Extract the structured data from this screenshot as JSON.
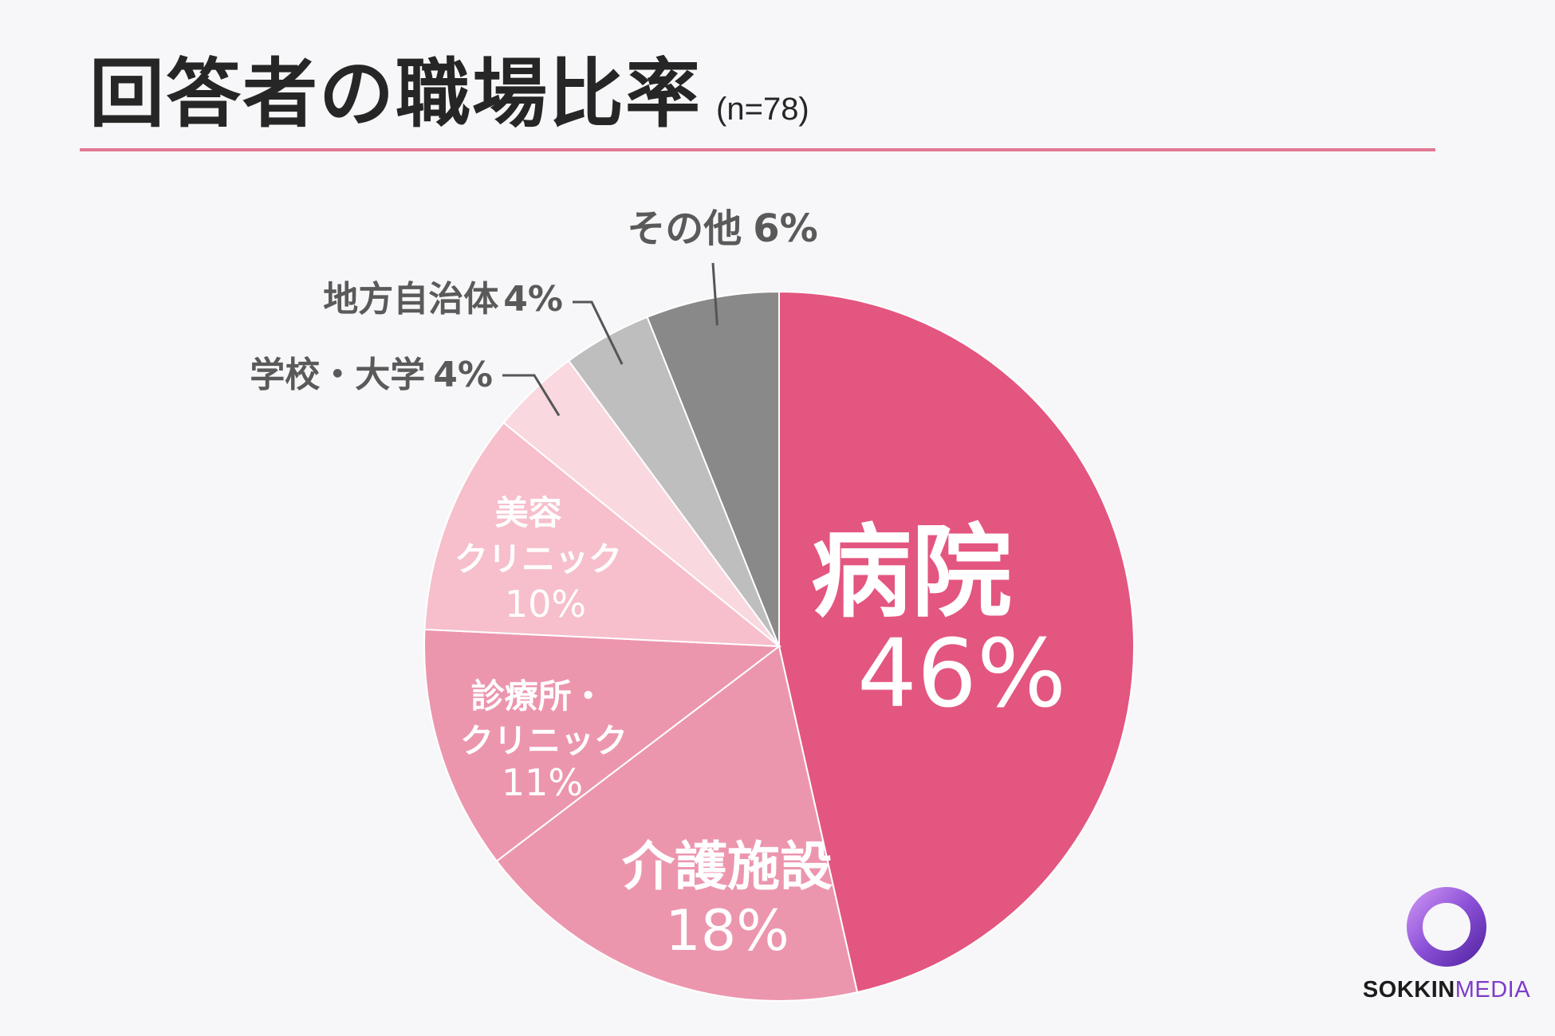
{
  "header": {
    "title": "回答者の職場比率",
    "sample": "(n=78)"
  },
  "brand": {
    "name_strong": "SOKKIN",
    "name_light": "MEDIA"
  },
  "chart_data": {
    "type": "pie",
    "title": "回答者の職場比率",
    "start_angle": "12 o'clock",
    "direction": "clockwise",
    "slices": [
      {
        "label": "病院",
        "value": 46,
        "value_label": "46%",
        "color": "#e3567f",
        "label_color": "#ffffff"
      },
      {
        "label": "介護施設",
        "value": 18,
        "value_label": "18%",
        "color": "#ec96ae",
        "label_color": "#ffffff"
      },
      {
        "label": "診療所・クリニック",
        "value": 11,
        "value_label": "11%",
        "color": "#ec96ae",
        "label_color": "#ffffff"
      },
      {
        "label": "美容クリニック",
        "value": 10,
        "value_label": "10%",
        "color": "#f6bfcb",
        "label_color": "#ffffff"
      },
      {
        "label": "学校・大学",
        "value": 4,
        "value_label": "4%",
        "color": "#fad8e0",
        "label_color": "#5a5a5a"
      },
      {
        "label": "地方自治体",
        "value": 4,
        "value_label": "4%",
        "color": "#bebebe",
        "label_color": "#5a5a5a"
      },
      {
        "label": "その他",
        "value": 6,
        "value_label": "6%",
        "color": "#898989",
        "label_color": "#5a5a5a"
      }
    ],
    "slice_border": "#ffffff",
    "leader_color": "#555555"
  }
}
